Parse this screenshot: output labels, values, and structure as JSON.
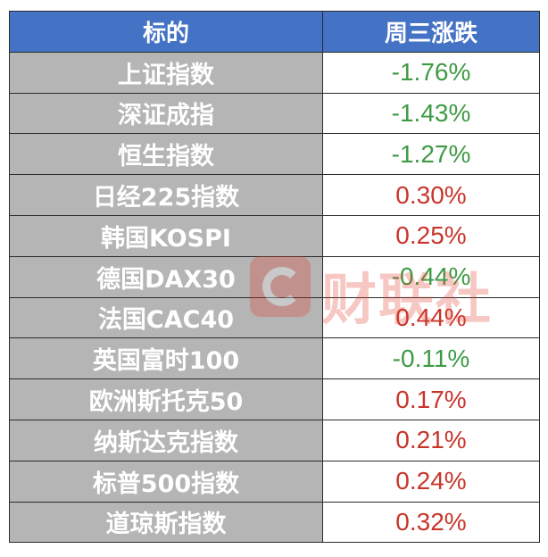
{
  "header": {
    "col1": "标的",
    "col2": "周三涨跌"
  },
  "rows": [
    {
      "name": "上证指数",
      "change": "-1.76%",
      "direction": "down"
    },
    {
      "name": "深证成指",
      "change": "-1.43%",
      "direction": "down"
    },
    {
      "name": "恒生指数",
      "change": "-1.27%",
      "direction": "down"
    },
    {
      "name": "日经225指数",
      "change": "0.30%",
      "direction": "up"
    },
    {
      "name": "韩国KOSPI",
      "change": "0.25%",
      "direction": "up"
    },
    {
      "name": "德国DAX30",
      "change": "-0.44%",
      "direction": "down"
    },
    {
      "name": "法国CAC40",
      "change": "0.44%",
      "direction": "up"
    },
    {
      "name": "英国富时100",
      "change": "-0.11%",
      "direction": "down"
    },
    {
      "name": "欧洲斯托克50",
      "change": "0.17%",
      "direction": "up"
    },
    {
      "name": "纳斯达克指数",
      "change": "0.21%",
      "direction": "up"
    },
    {
      "name": "标普500指数",
      "change": "0.24%",
      "direction": "up"
    },
    {
      "name": "道琼斯指数",
      "change": "0.32%",
      "direction": "up"
    }
  ],
  "watermark": {
    "text": "财联社",
    "icon": "cls-logo-icon"
  },
  "colors": {
    "header_bg": "#4472c4",
    "name_bg": "#b5b5b5",
    "up": "#c8362b",
    "down": "#3e9b44",
    "watermark": "#e23a2a"
  }
}
